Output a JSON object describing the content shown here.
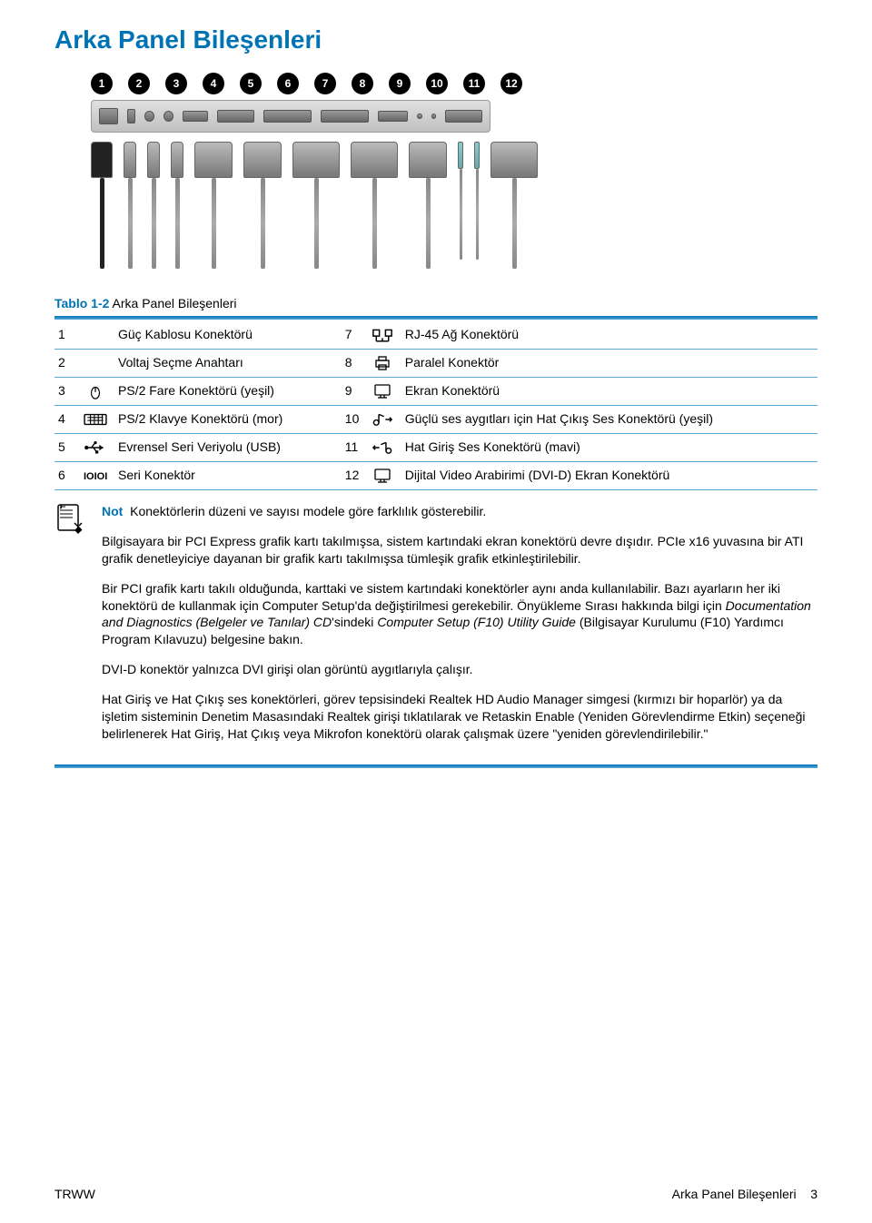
{
  "colors": {
    "accent": "#0073b5",
    "text": "#000000",
    "rule_light": "#5aa8d6",
    "background": "#ffffff"
  },
  "title": "Arka Panel Bileşenleri",
  "illustration": {
    "callouts": [
      "1",
      "2",
      "3",
      "4",
      "5",
      "6",
      "7",
      "8",
      "9",
      "10",
      "11",
      "12"
    ]
  },
  "table_caption_prefix": "Tablo 1-2",
  "table_caption_rest": "  Arka Panel Bileşenleri",
  "rows": [
    {
      "ln": "1",
      "li": "",
      "lt": "Güç Kablosu Konektörü",
      "rn": "7",
      "ri": "rj45",
      "rt": "RJ-45 Ağ Konektörü"
    },
    {
      "ln": "2",
      "li": "",
      "lt": "Voltaj Seçme Anahtarı",
      "rn": "8",
      "ri": "printer",
      "rt": "Paralel Konektör"
    },
    {
      "ln": "3",
      "li": "mouse",
      "lt": "PS/2 Fare Konektörü (yeşil)",
      "rn": "9",
      "ri": "monitor",
      "rt": "Ekran Konektörü"
    },
    {
      "ln": "4",
      "li": "keyboard",
      "lt": "PS/2 Klavye Konektörü (mor)",
      "rn": "10",
      "ri": "audio-out",
      "rt": "Güçlü ses aygıtları için Hat Çıkış Ses Konektörü (yeşil)"
    },
    {
      "ln": "5",
      "li": "usb",
      "lt": "Evrensel Seri Veriyolu (USB)",
      "rn": "11",
      "ri": "audio-in",
      "rt": "Hat Giriş Ses Konektörü (mavi)"
    },
    {
      "ln": "6",
      "li": "serial",
      "lt": "Seri Konektör",
      "rn": "12",
      "ri": "monitor",
      "rt": "Dijital Video Arabirimi (DVI-D) Ekran Konektörü"
    }
  ],
  "note": {
    "label": "Not",
    "p1": "Konektörlerin düzeni ve sayısı modele göre farklılık gösterebilir.",
    "p2": "Bilgisayara bir PCI Express grafik kartı takılmışsa, sistem kartındaki ekran konektörü devre dışıdır. PCIe x16 yuvasına bir ATI grafik denetleyiciye dayanan bir grafik kartı takılmışsa tümleşik grafik etkinleştirilebilir.",
    "p3_a": "Bir PCI grafik kartı takılı olduğunda, karttaki ve sistem kartındaki konektörler aynı anda kullanılabilir. Bazı ayarların her iki konektörü de kullanmak için Computer Setup'da değiştirilmesi gerekebilir. Önyükleme Sırası hakkında bilgi için ",
    "p3_i1": "Documentation and Diagnostics (Belgeler ve Tanılar) CD",
    "p3_b": "'sindeki ",
    "p3_i2": "Computer Setup (F10) Utility Guide",
    "p3_c": " (Bilgisayar Kurulumu (F10) Yardımcı Program Kılavuzu) belgesine bakın.",
    "p4": "DVI-D konektör yalnızca DVI girişi olan görüntü aygıtlarıyla çalışır.",
    "p5": "Hat Giriş ve Hat Çıkış ses konektörleri, görev tepsisindeki Realtek HD Audio Manager simgesi (kırmızı bir hoparlör) ya da işletim sisteminin Denetim Masasındaki Realtek girişi tıklatılarak ve Retaskin Enable (Yeniden Görevlendirme Etkin) seçeneği belirlenerek Hat Giriş, Hat Çıkış veya Mikrofon konektörü olarak çalışmak üzere \"yeniden görevlendirilebilir.\""
  },
  "footer": {
    "left": "TRWW",
    "right_text": "Arka Panel Bileşenleri",
    "page": "3"
  }
}
